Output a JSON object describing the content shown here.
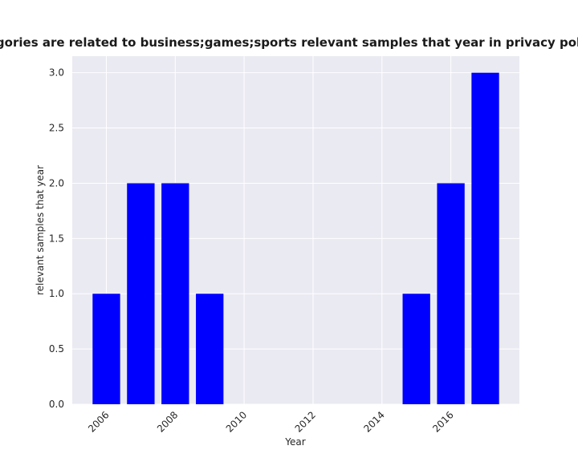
{
  "chart_data": {
    "type": "bar",
    "title": "categories are related to business;games;sports relevant samples that year in privacy policies",
    "x_label": "Year",
    "y_label": "relevant samples that year",
    "x": [
      2006,
      2007,
      2008,
      2009,
      2015,
      2016,
      2017
    ],
    "values": [
      1,
      2,
      2,
      1,
      1,
      2,
      3
    ],
    "color": "#0000ff",
    "xlim": [
      2005.01,
      2017.99
    ],
    "xticks": [
      2006,
      2008,
      2010,
      2012,
      2014,
      2016
    ],
    "ylim": [
      0,
      3.15
    ],
    "yticks": [
      {
        "value": 0,
        "label": "0.0"
      },
      {
        "value": 0.5,
        "label": "0.5"
      },
      {
        "value": 1,
        "label": "1.0"
      },
      {
        "value": 1.5,
        "label": "1.5"
      },
      {
        "value": 2,
        "label": "2.0"
      },
      {
        "value": 2.5,
        "label": "2.5"
      },
      {
        "value": 3,
        "label": "3.0"
      }
    ],
    "grid": true
  }
}
